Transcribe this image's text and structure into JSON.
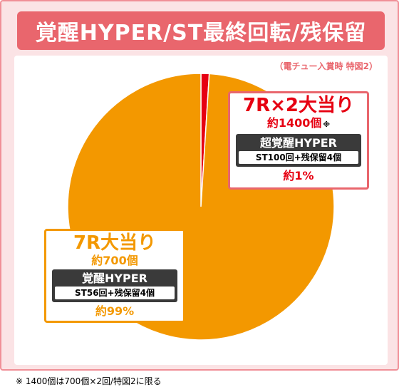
{
  "header": {
    "title": "覚醒HYPER/ST最終回転/残保留"
  },
  "sub_note": "（電チュー入賞時 特図2）",
  "chart_data": {
    "type": "pie",
    "title": "",
    "slices": [
      {
        "head": "7R×2大当り",
        "count": "約1400個",
        "count_mark": "※",
        "mode": "超覚醒HYPER",
        "detail": "ST100回+残保留4個",
        "percent_label": "約1%",
        "value": 1,
        "color": "#e60012"
      },
      {
        "head": "7R大当り",
        "count": "約700個",
        "count_mark": "",
        "mode": "覚醒HYPER",
        "detail": "ST56回+残保留4個",
        "percent_label": "約99%",
        "value": 99,
        "color": "#f39800"
      }
    ]
  },
  "colors": {
    "title_bg": "#e9666d",
    "frame_bg": "#fbe3e5",
    "small_slice": "#e60012",
    "large_slice": "#f39800"
  },
  "footnote": "※ 1400個は700個×2回/特図2に限る"
}
